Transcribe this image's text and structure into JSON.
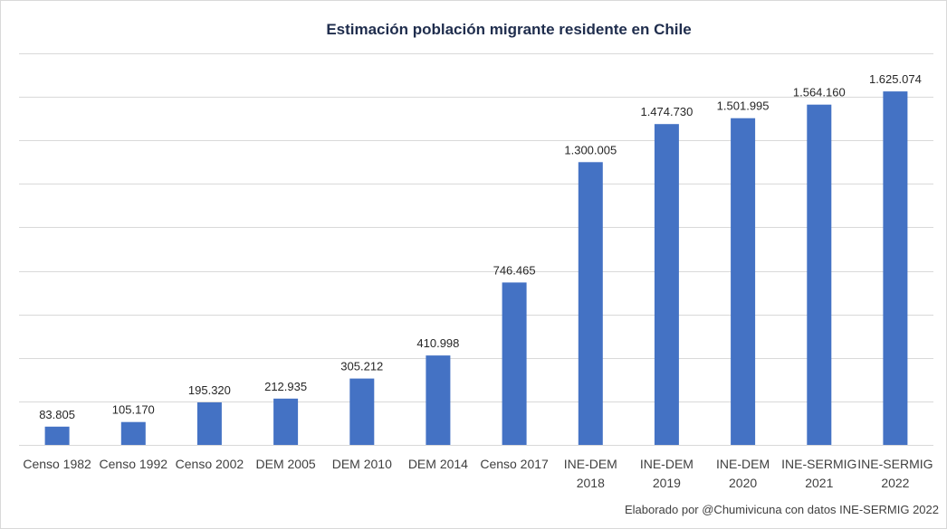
{
  "chart_data": {
    "type": "bar",
    "title": "Estimación población migrante residente en Chile",
    "categories": [
      [
        "Censo 1982"
      ],
      [
        "Censo 1992"
      ],
      [
        "Censo 2002"
      ],
      [
        "DEM 2005"
      ],
      [
        "DEM 2010"
      ],
      [
        "DEM 2014"
      ],
      [
        "Censo 2017"
      ],
      [
        "INE-DEM",
        "2018"
      ],
      [
        "INE-DEM",
        "2019"
      ],
      [
        "INE-DEM",
        "2020"
      ],
      [
        "INE-SERMIG",
        "2021"
      ],
      [
        "INE-SERMIG",
        "2022"
      ]
    ],
    "values": [
      83805,
      105170,
      195320,
      212935,
      305212,
      410998,
      746465,
      1300005,
      1474730,
      1501995,
      1564160,
      1625074
    ],
    "value_labels": [
      "83.805",
      "105.170",
      "195.320",
      "212.935",
      "305.212",
      "410.998",
      "746.465",
      "1.300.005",
      "1.474.730",
      "1.501.995",
      "1.564.160",
      "1.625.074"
    ],
    "ylim": [
      0,
      1800000
    ],
    "y_gridline_step": 200000,
    "y_tick_labels_shown": false,
    "grid": true,
    "legend": "none",
    "bar_color": "#4472c4",
    "gridline_color": "#d9d9d9",
    "xlabel": "",
    "ylabel": ""
  },
  "footer": {
    "credit": "Elaborado por @Chumivicuna con datos INE-SERMIG 2022"
  }
}
